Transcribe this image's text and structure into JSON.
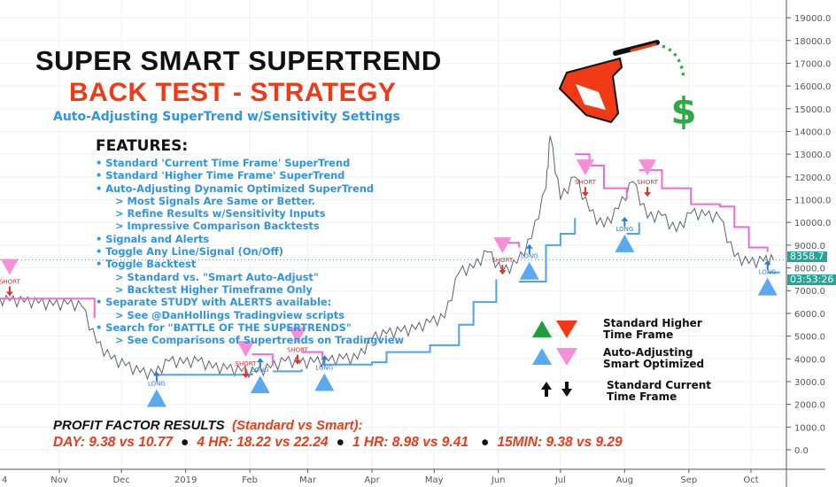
{
  "title": "SUPER SMART SUPERTREND",
  "subtitle": "BACK TEST - STRATEGY",
  "tagline": "Auto-Adjusting SuperTrend w/Sensitivity Settings",
  "features": {
    "heading": "FEATURES:",
    "items": [
      {
        "text": "• Standard 'Current Time Frame' SuperTrend",
        "sub": false
      },
      {
        "text": "• Standard 'Higher Time Frame' SuperTrend",
        "sub": false
      },
      {
        "text": "• Auto-Adjusting Dynamic Optimized SuperTrend",
        "sub": false
      },
      {
        "text": "> Most Signals Are Same or Better.",
        "sub": true
      },
      {
        "text": "> Refine Results w/Sensitivity Inputs",
        "sub": true
      },
      {
        "text": "> Impressive Comparison Backtests",
        "sub": true
      },
      {
        "text": "• Signals and Alerts",
        "sub": false
      },
      {
        "text": "• Toggle Any Line/Signal (On/Off)",
        "sub": false
      },
      {
        "text": "• Toggle Backtest",
        "sub": false
      },
      {
        "text": "> Standard vs. \"Smart Auto-Adjust\"",
        "sub": true
      },
      {
        "text": "> Backtest Higher Timeframe Only",
        "sub": true
      },
      {
        "text": "• Separate STUDY with ALERTS available:",
        "sub": false
      },
      {
        "text": "> See @DanHollings Tradingview scripts",
        "sub": true
      },
      {
        "text": "• Search for \"BATTLE OF THE SUPERTRENDS\"",
        "sub": false
      },
      {
        "text": "> See Comparisons of Supertrends on Tradingview",
        "sub": true
      }
    ]
  },
  "legend": {
    "standard_higher": "Standard Higher\nTime Frame",
    "auto_adjusting": "Auto-Adjusting\nSmart Optimized",
    "standard_current": "Standard Current\nTime Frame"
  },
  "profit_factor": {
    "heading": "PROFIT FACTOR RESULTS",
    "heading_note": "(Standard vs Smart):",
    "results": [
      "DAY: 9.38 vs 10.77",
      "4 HR: 18.22 vs 22.24",
      "1 HR: 8.98 vs 9.41",
      "15MIN: 9.38 vs 9.29"
    ],
    "separator": "●"
  },
  "logo": {
    "dollar": "$"
  },
  "price_tag": {
    "last_price": "8358.7",
    "countdown": "03:53:26"
  },
  "colors": {
    "price": "#5d606b",
    "supertrend_long": "#4da3f0",
    "supertrend_short": "#f06ad6",
    "short_marker": "#f48fd8",
    "long_marker": "#5aa8f0",
    "accent_red": "#f03a17",
    "accent_blue": "#2f93e6",
    "last_price_tag": "#26a69a"
  },
  "chart_data": {
    "type": "line",
    "x_start": "2018-10-01",
    "x_end": "2019-10-18",
    "xticks": [
      {
        "date": "2018-10-01",
        "label": "4"
      },
      {
        "date": "2018-11-01",
        "label": "Nov"
      },
      {
        "date": "2018-12-01",
        "label": "Dec"
      },
      {
        "date": "2019-01-01",
        "label": "2019"
      },
      {
        "date": "2019-02-01",
        "label": "Feb"
      },
      {
        "date": "2019-03-01",
        "label": "Mar"
      },
      {
        "date": "2019-04-01",
        "label": "Apr"
      },
      {
        "date": "2019-05-01",
        "label": "May"
      },
      {
        "date": "2019-06-01",
        "label": "Jun"
      },
      {
        "date": "2019-07-01",
        "label": "Jul"
      },
      {
        "date": "2019-08-01",
        "label": "Aug"
      },
      {
        "date": "2019-09-01",
        "label": "Sep"
      },
      {
        "date": "2019-10-01",
        "label": "Oct"
      }
    ],
    "ylim": [
      -1300,
      20000
    ],
    "yticks": [
      "0.0",
      "1000.0",
      "2000.0",
      "3000.0",
      "4000.0",
      "5000.0",
      "6000.0",
      "7000.0",
      "8000.0",
      "9000.0",
      "10000.0",
      "11000.0",
      "12000.0",
      "13000.0",
      "14000.0",
      "15000.0",
      "16000.0",
      "17000.0",
      "18000.0",
      "19000.0"
    ],
    "grid": true,
    "series": [
      {
        "key": "price",
        "points": [
          [
            "2018-10-01",
            6600
          ],
          [
            "2018-10-08",
            6550
          ],
          [
            "2018-10-15",
            6500
          ],
          [
            "2018-10-22",
            6450
          ],
          [
            "2018-10-29",
            6350
          ],
          [
            "2018-11-05",
            6400
          ],
          [
            "2018-11-12",
            6300
          ],
          [
            "2018-11-19",
            4700
          ],
          [
            "2018-11-26",
            4000
          ],
          [
            "2018-12-03",
            3700
          ],
          [
            "2018-12-10",
            3400
          ],
          [
            "2018-12-17",
            3300
          ],
          [
            "2018-12-24",
            3900
          ],
          [
            "2018-12-31",
            3800
          ],
          [
            "2019-01-07",
            3900
          ],
          [
            "2019-01-14",
            3600
          ],
          [
            "2019-01-21",
            3550
          ],
          [
            "2019-01-28",
            3450
          ],
          [
            "2019-02-04",
            3400
          ],
          [
            "2019-02-11",
            3600
          ],
          [
            "2019-02-18",
            3900
          ],
          [
            "2019-02-25",
            3800
          ],
          [
            "2019-03-04",
            3850
          ],
          [
            "2019-03-11",
            3900
          ],
          [
            "2019-03-18",
            4000
          ],
          [
            "2019-03-25",
            4000
          ],
          [
            "2019-04-01",
            4900
          ],
          [
            "2019-04-08",
            5100
          ],
          [
            "2019-04-15",
            5200
          ],
          [
            "2019-04-22",
            5300
          ],
          [
            "2019-04-29",
            5600
          ],
          [
            "2019-05-06",
            5800
          ],
          [
            "2019-05-13",
            7800
          ],
          [
            "2019-05-20",
            8000
          ],
          [
            "2019-05-27",
            8700
          ],
          [
            "2019-06-03",
            7800
          ],
          [
            "2019-06-10",
            8200
          ],
          [
            "2019-06-17",
            9300
          ],
          [
            "2019-06-24",
            11500
          ],
          [
            "2019-06-26",
            13800
          ],
          [
            "2019-07-01",
            11000
          ],
          [
            "2019-07-08",
            12000
          ],
          [
            "2019-07-15",
            10500
          ],
          [
            "2019-07-22",
            9800
          ],
          [
            "2019-07-29",
            10600
          ],
          [
            "2019-08-05",
            11800
          ],
          [
            "2019-08-12",
            10200
          ],
          [
            "2019-08-19",
            10300
          ],
          [
            "2019-08-26",
            9600
          ],
          [
            "2019-09-02",
            10400
          ],
          [
            "2019-09-09",
            10300
          ],
          [
            "2019-09-16",
            10200
          ],
          [
            "2019-09-23",
            8500
          ],
          [
            "2019-09-30",
            8200
          ],
          [
            "2019-10-07",
            8300
          ],
          [
            "2019-10-12",
            8358.7
          ]
        ]
      },
      {
        "key": "supertrend_short",
        "segments": [
          [
            [
              "2018-10-01",
              6650
            ],
            [
              "2018-11-18",
              6550
            ],
            [
              "2018-11-18",
              5800
            ]
          ],
          [
            [
              "2019-02-02",
              4200
            ],
            [
              "2019-02-12",
              3700
            ]
          ],
          [
            [
              "2019-02-26",
              4300
            ],
            [
              "2019-03-08",
              4000
            ]
          ],
          [
            [
              "2019-06-01",
              9100
            ],
            [
              "2019-06-11",
              8900
            ]
          ],
          [
            [
              "2019-07-08",
              13000
            ],
            [
              "2019-07-15",
              12500
            ],
            [
              "2019-07-22",
              11500
            ],
            [
              "2019-08-02",
              11000
            ]
          ],
          [
            [
              "2019-08-08",
              12300
            ],
            [
              "2019-08-19",
              11500
            ],
            [
              "2019-09-02",
              10800
            ],
            [
              "2019-09-16",
              10700
            ],
            [
              "2019-09-23",
              9800
            ],
            [
              "2019-09-30",
              8900
            ],
            [
              "2019-10-09",
              8700
            ]
          ]
        ]
      },
      {
        "key": "supertrend_long",
        "segments": [
          [
            [
              "2018-12-18",
              3300
            ],
            [
              "2019-02-02",
              3400
            ]
          ],
          [
            [
              "2019-02-12",
              3450
            ],
            [
              "2019-02-26",
              3550
            ]
          ],
          [
            [
              "2019-03-08",
              3750
            ],
            [
              "2019-04-01",
              3850
            ],
            [
              "2019-04-08",
              4300
            ],
            [
              "2019-04-29",
              4600
            ],
            [
              "2019-05-13",
              5500
            ],
            [
              "2019-05-20",
              6500
            ],
            [
              "2019-05-31",
              7500
            ]
          ],
          [
            [
              "2019-06-11",
              7400
            ],
            [
              "2019-06-24",
              9000
            ],
            [
              "2019-07-01",
              9500
            ],
            [
              "2019-07-08",
              10200
            ]
          ],
          [
            [
              "2019-08-02",
              9500
            ],
            [
              "2019-08-08",
              10000
            ]
          ],
          [
            [
              "2019-10-09",
              7800
            ],
            [
              "2019-10-15",
              7800
            ]
          ]
        ]
      }
    ],
    "signals": [
      {
        "type": "short",
        "label": "SHORT",
        "date": "2018-10-08",
        "price": 8000
      },
      {
        "type": "short",
        "label": "SHORT",
        "date": "2019-01-30",
        "price": 4400
      },
      {
        "type": "short",
        "label": "SHORT",
        "date": "2019-02-24",
        "price": 5000
      },
      {
        "type": "short",
        "label": "SHORT",
        "date": "2019-06-03",
        "price": 8950
      },
      {
        "type": "short",
        "label": "SHORT",
        "date": "2019-07-13",
        "price": 12380
      },
      {
        "type": "short",
        "label": "SHORT",
        "date": "2019-08-12",
        "price": 12380
      },
      {
        "type": "long",
        "label": "LONG",
        "date": "2018-12-18",
        "price": 2200
      },
      {
        "type": "long",
        "label": "LONG",
        "date": "2019-02-06",
        "price": 2800
      },
      {
        "type": "long",
        "label": "LONG",
        "date": "2019-03-09",
        "price": 2900
      },
      {
        "type": "long",
        "label": "LONG",
        "date": "2019-06-16",
        "price": 7800
      },
      {
        "type": "long",
        "label": "LONG",
        "date": "2019-08-01",
        "price": 9000
      },
      {
        "type": "long",
        "label": "LONG",
        "date": "2019-10-09",
        "price": 7100
      }
    ]
  }
}
